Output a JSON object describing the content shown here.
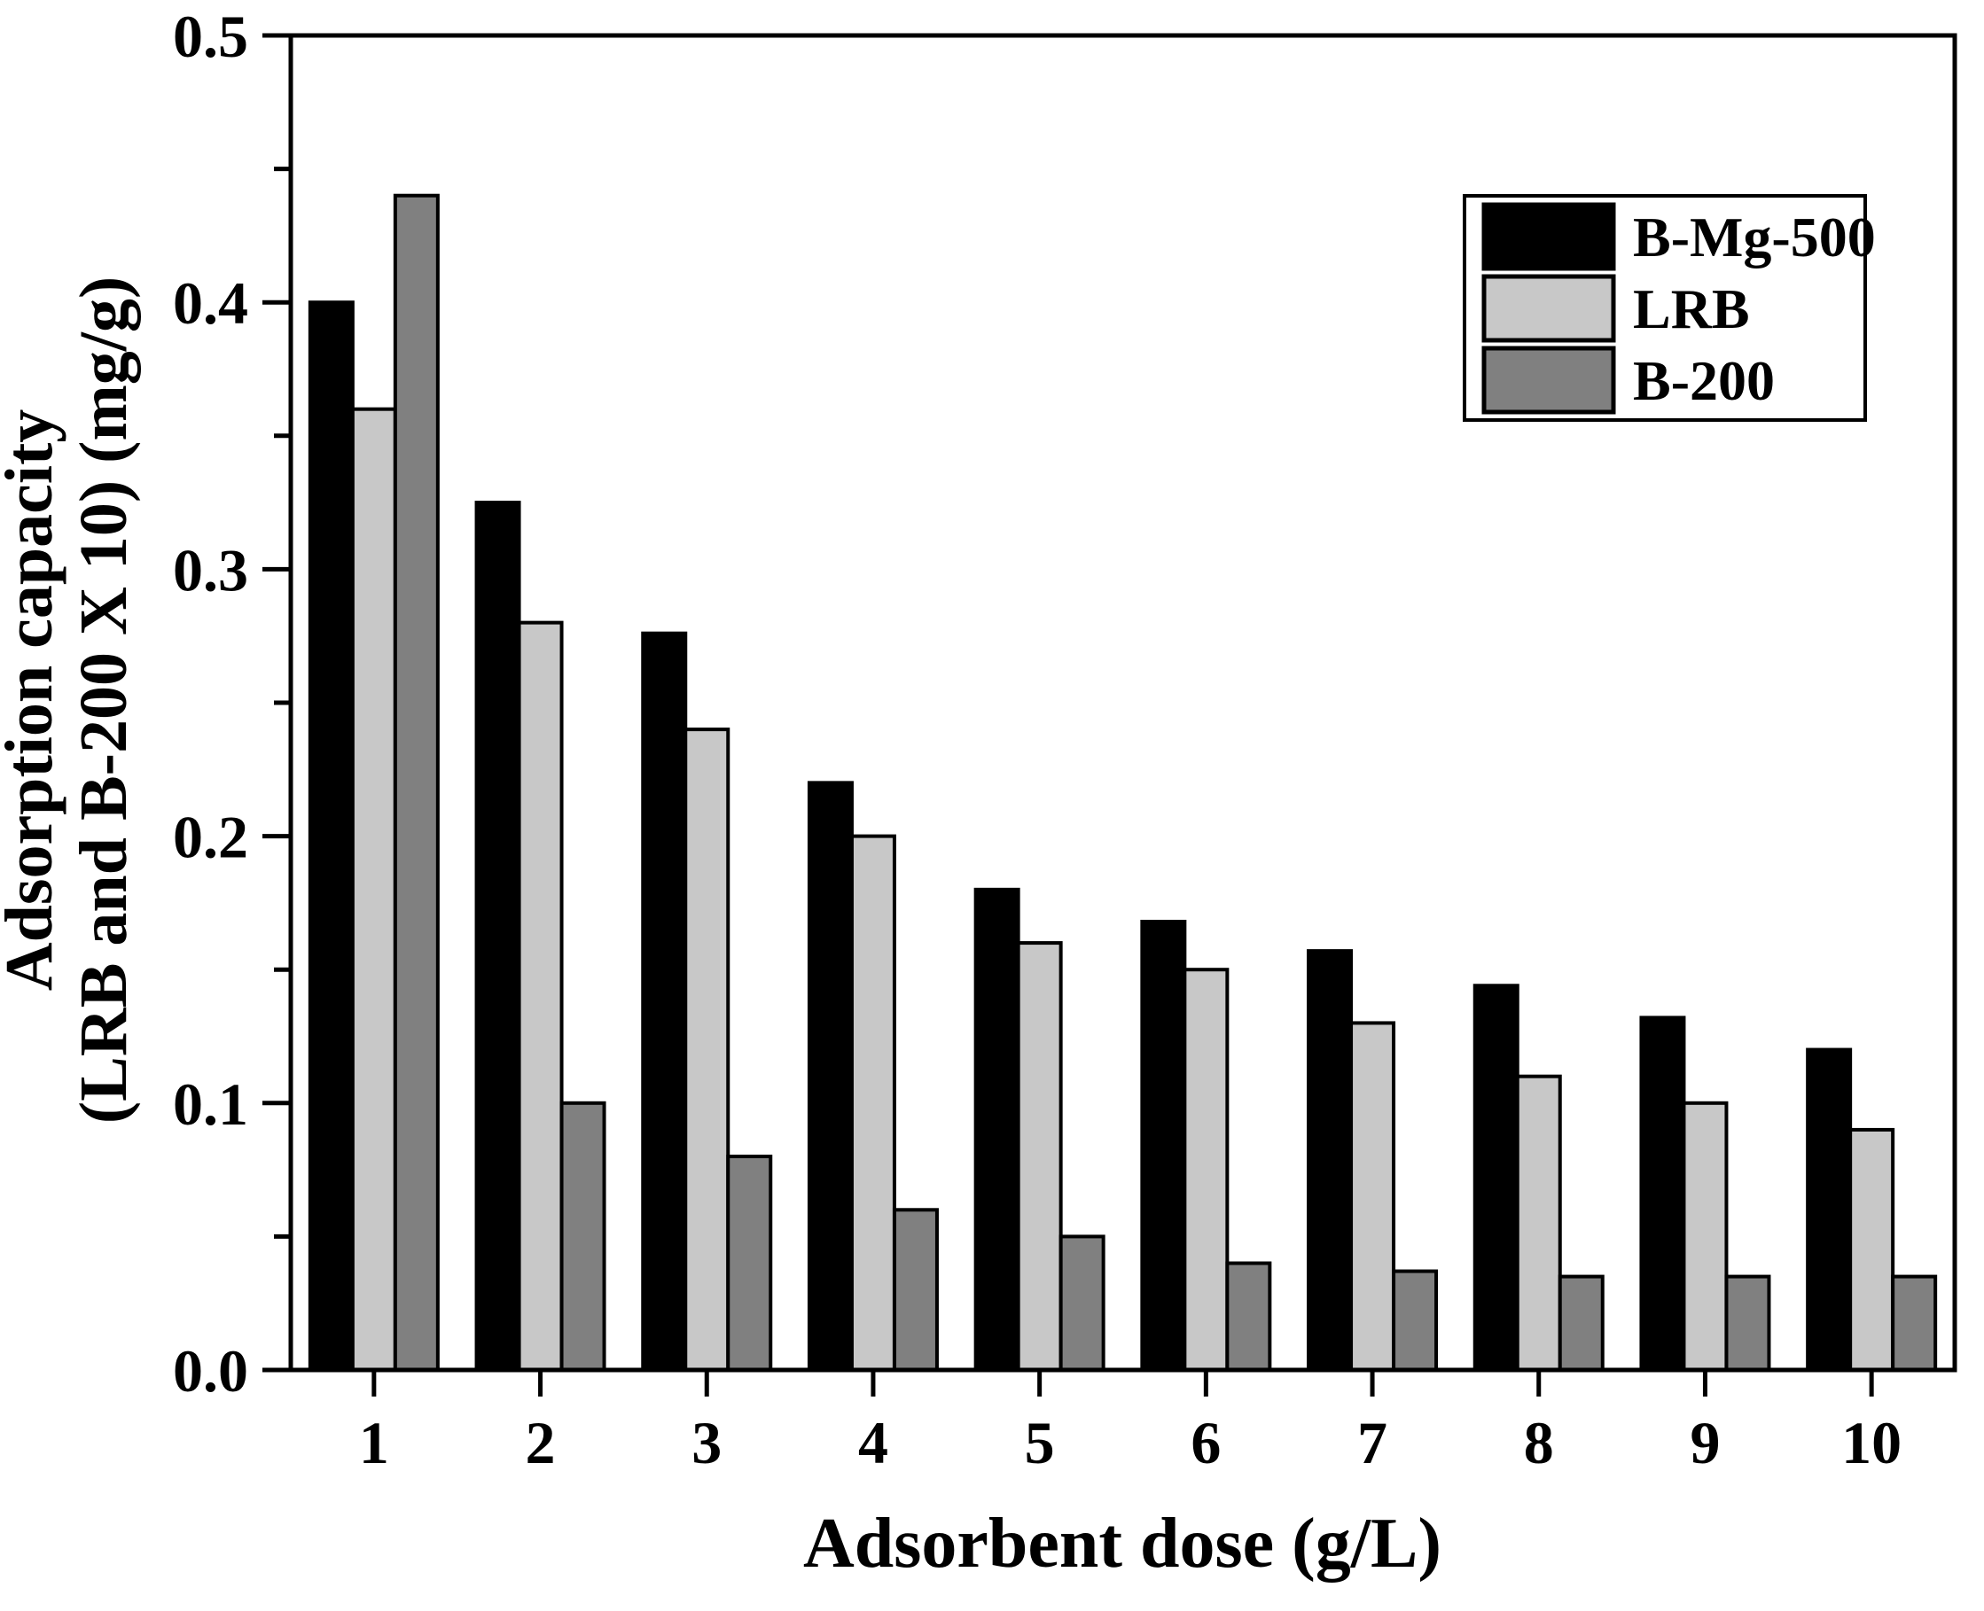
{
  "chart_data": {
    "type": "bar",
    "title": "",
    "xlabel": "Adsorbent dose (g/L)",
    "ylabel_line1": "Adsorption capacity",
    "ylabel_line2": "(LRB and B-200 X 10) (mg/g)",
    "categories": [
      "1",
      "2",
      "3",
      "4",
      "5",
      "6",
      "7",
      "8",
      "9",
      "10"
    ],
    "series": [
      {
        "name": "B-Mg-500",
        "color": "#000000",
        "values": [
          0.4,
          0.325,
          0.276,
          0.22,
          0.18,
          0.168,
          0.157,
          0.144,
          0.132,
          0.12
        ]
      },
      {
        "name": "LRB",
        "color": "#c8c8c8",
        "values": [
          0.36,
          0.28,
          0.24,
          0.2,
          0.16,
          0.15,
          0.13,
          0.11,
          0.1,
          0.09
        ]
      },
      {
        "name": "B-200",
        "color": "#808080",
        "values": [
          0.44,
          0.1,
          0.08,
          0.06,
          0.05,
          0.04,
          0.037,
          0.035,
          0.035,
          0.035
        ]
      }
    ],
    "ylim": [
      0.0,
      0.5
    ],
    "ytick_step": 0.1,
    "ytick_minor_step": 0.05,
    "ytick_labels": [
      "0.0",
      "0.1",
      "0.2",
      "0.3",
      "0.4",
      "0.5"
    ],
    "grid": "off",
    "legend_position": "upper-right",
    "bar_edge_color": "#000000",
    "frame_color": "#000000",
    "background_color": "#ffffff"
  }
}
